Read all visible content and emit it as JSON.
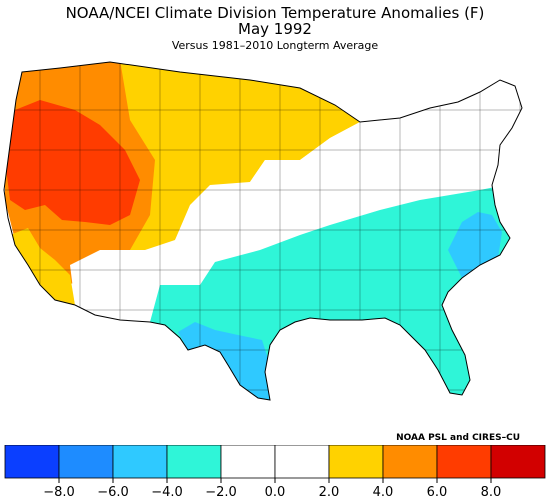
{
  "title": "NOAA/NCEI Climate Division Temperature Anomalies (F)",
  "subtitle": "May 1992",
  "caption": "Versus 1981–2010 Longterm Average",
  "credit": "NOAA PSL and CIRES–CU",
  "legend": {
    "colors": [
      "#0b3fff",
      "#1e8cff",
      "#2fc9ff",
      "#2ff5d8",
      "#ffffff",
      "#ffffff",
      "#ffd200",
      "#ff8c00",
      "#ff3c00",
      "#d20000"
    ],
    "tick_labels": [
      "−8.0",
      "−6.0",
      "−4.0",
      "−2.0",
      "0.0",
      "2.0",
      "4.0",
      "6.0",
      "8.0"
    ],
    "tick_values": [
      -8,
      -6,
      -4,
      -2,
      0,
      2,
      4,
      6,
      8
    ]
  },
  "regions": {
    "west_coast": "#ff3c00",
    "great_basin": "#ff3c00",
    "northwest": "#ff8c00",
    "california_south": "#ffd200",
    "northern_plains": "#ffd200",
    "upper_midwest": "#ffd200",
    "great_lakes": "#ffffff",
    "northeast": "#ffffff",
    "central_plains": "#ffffff",
    "southwest": "#ffffff",
    "southeast": "#2ff5d8",
    "south_central": "#2ff5d8",
    "mid_atlantic": "#2fc9ff",
    "texas": "#2fc9ff"
  }
}
